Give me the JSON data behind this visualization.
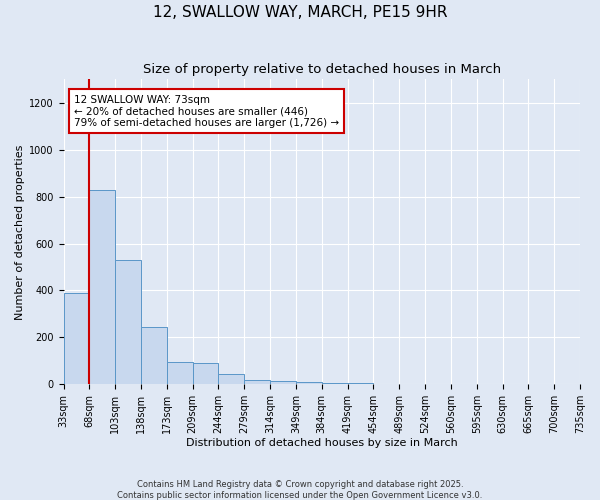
{
  "title": "12, SWALLOW WAY, MARCH, PE15 9HR",
  "subtitle": "Size of property relative to detached houses in March",
  "xlabel": "Distribution of detached houses by size in March",
  "ylabel": "Number of detached properties",
  "bins": [
    "33sqm",
    "68sqm",
    "103sqm",
    "138sqm",
    "173sqm",
    "209sqm",
    "244sqm",
    "279sqm",
    "314sqm",
    "349sqm",
    "384sqm",
    "419sqm",
    "454sqm",
    "489sqm",
    "524sqm",
    "560sqm",
    "595sqm",
    "630sqm",
    "665sqm",
    "700sqm",
    "735sqm"
  ],
  "values": [
    390,
    830,
    530,
    245,
    95,
    90,
    45,
    18,
    15,
    8,
    5,
    4,
    2,
    1,
    0,
    0,
    0,
    0,
    0,
    0
  ],
  "bar_color": "#c8d8ee",
  "bar_edge_color": "#5a96c8",
  "vline_color": "#cc0000",
  "vline_x": 1.0,
  "annotation_text": "12 SWALLOW WAY: 73sqm\n← 20% of detached houses are smaller (446)\n79% of semi-detached houses are larger (1,726) →",
  "annotation_box_facecolor": "#ffffff",
  "annotation_box_edgecolor": "#cc0000",
  "ylim": [
    0,
    1300
  ],
  "yticks": [
    0,
    200,
    400,
    600,
    800,
    1000,
    1200
  ],
  "bg_color": "#e0e8f4",
  "plot_bg_color": "#e0e8f4",
  "grid_color": "#ffffff",
  "footer1": "Contains HM Land Registry data © Crown copyright and database right 2025.",
  "footer2": "Contains public sector information licensed under the Open Government Licence v3.0.",
  "title_fontsize": 11,
  "subtitle_fontsize": 9.5,
  "label_fontsize": 8,
  "tick_fontsize": 7,
  "annot_fontsize": 7.5
}
